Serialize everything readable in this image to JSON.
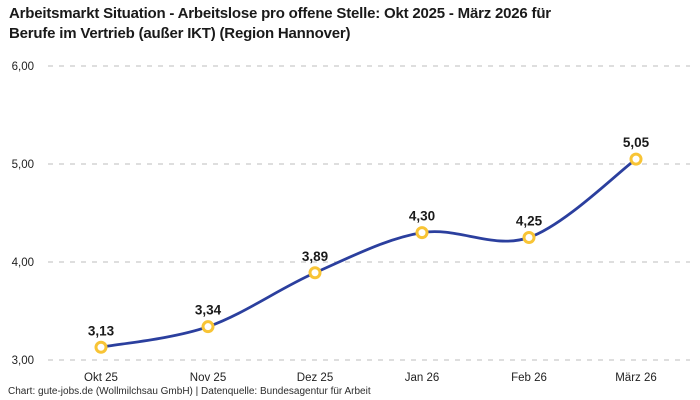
{
  "title": "Arbeitsmarkt Situation - Arbeitslose pro offene Stelle: Okt 2025 - März 2026 für\nBerufe im Vertrieb (außer IKT) (Region Hannover)",
  "footer": "Chart: gute-jobs.de (Wollmilchsau GmbH) | Datenquelle: Bundesagentur für Arbeit",
  "colors": {
    "background": "#ffffff",
    "title_text": "#1a1a1a",
    "axis_text": "#222222",
    "grid": "#cbcbcb",
    "line": "#2b3f9e",
    "marker_ring": "#f8c435",
    "marker_fill": "#ffffff",
    "value_label": "#1a1a1a"
  },
  "chart_data": {
    "type": "line",
    "title": "Arbeitsmarkt Situation - Arbeitslose pro offene Stelle: Okt 2025 - März 2026 für Berufe im Vertrieb (außer IKT) (Region Hannover)",
    "categories": [
      "Okt 25",
      "Nov 25",
      "Dez 25",
      "Jan 26",
      "Feb 26",
      "März 26"
    ],
    "values": [
      3.13,
      3.34,
      3.89,
      4.3,
      4.25,
      5.05
    ],
    "value_labels": [
      "3,13",
      "3,34",
      "3,89",
      "4,30",
      "4,25",
      "5,05"
    ],
    "y_ticks": [
      {
        "value": 3,
        "label": "3,00"
      },
      {
        "value": 4,
        "label": "4,00"
      },
      {
        "value": 5,
        "label": "5,00"
      },
      {
        "value": 6,
        "label": "6,00"
      }
    ],
    "ylim": [
      3,
      6
    ],
    "xlabel": "",
    "ylabel": "",
    "grid": "horizontal-dashed",
    "legend": "none",
    "line_style": "smooth",
    "marker": "open-circle"
  }
}
